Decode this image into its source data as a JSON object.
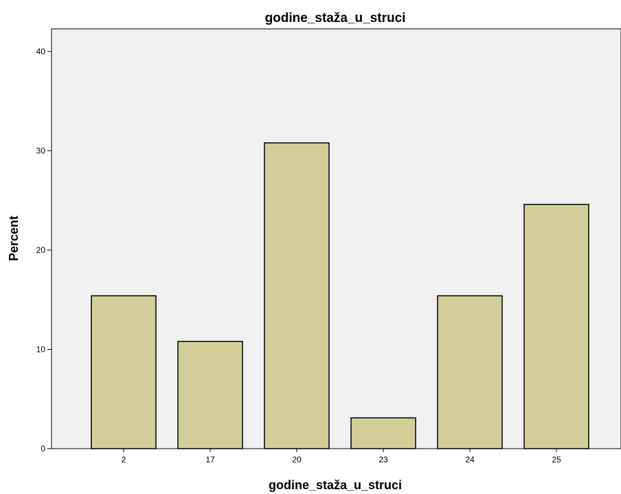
{
  "chart_data": {
    "type": "bar",
    "title": "godine_staža_u_struci",
    "xlabel": "godine_staža_u_struci",
    "ylabel": "Percent",
    "categories": [
      "2",
      "17",
      "20",
      "23",
      "24",
      "25"
    ],
    "values": [
      15.4,
      10.8,
      30.8,
      3.1,
      15.4,
      24.6
    ],
    "ylim": [
      0,
      40
    ],
    "yticks": [
      "0",
      "10",
      "20",
      "30",
      "40"
    ],
    "grid": false,
    "colors": {
      "bar_fill": "#d3ce97",
      "bar_stroke": "#000000",
      "plot_background": "#f0f0f0"
    }
  }
}
